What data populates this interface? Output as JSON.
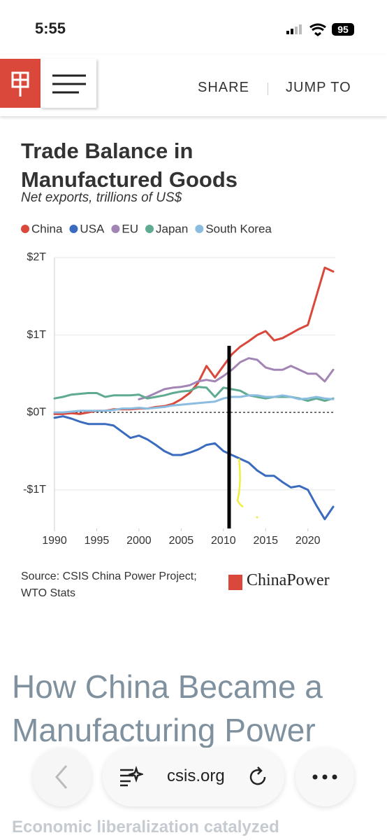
{
  "status_bar": {
    "time": "5:55",
    "battery": "95"
  },
  "nav": {
    "share": "SHARE",
    "jump_to": "JUMP TO"
  },
  "chart_data": {
    "type": "line",
    "title": "Trade Balance in Manufactured Goods",
    "subtitle": "Net exports, trillions of US$",
    "x": [
      1990,
      1991,
      1992,
      1993,
      1994,
      1995,
      1996,
      1997,
      1998,
      1999,
      2000,
      2001,
      2002,
      2003,
      2004,
      2005,
      2006,
      2007,
      2008,
      2009,
      2010,
      2011,
      2012,
      2013,
      2014,
      2015,
      2016,
      2017,
      2018,
      2019,
      2020,
      2021,
      2022,
      2023
    ],
    "series": [
      {
        "name": "China",
        "color": "#d9483b",
        "values": [
          -0.02,
          -0.02,
          -0.01,
          -0.02,
          0.0,
          0.02,
          0.02,
          0.04,
          0.04,
          0.04,
          0.05,
          0.05,
          0.07,
          0.08,
          0.11,
          0.17,
          0.25,
          0.38,
          0.6,
          0.45,
          0.6,
          0.75,
          0.85,
          0.92,
          1.0,
          1.05,
          0.93,
          0.96,
          1.02,
          1.08,
          1.13,
          1.5,
          1.87,
          1.82
        ]
      },
      {
        "name": "USA",
        "color": "#3b6bbf",
        "values": [
          -0.07,
          -0.05,
          -0.08,
          -0.12,
          -0.15,
          -0.15,
          -0.15,
          -0.17,
          -0.25,
          -0.33,
          -0.3,
          -0.35,
          -0.42,
          -0.5,
          -0.55,
          -0.55,
          -0.52,
          -0.48,
          -0.42,
          -0.4,
          -0.5,
          -0.55,
          -0.6,
          -0.65,
          -0.75,
          -0.82,
          -0.82,
          -0.9,
          -0.97,
          -0.95,
          -1.0,
          -1.2,
          -1.38,
          -1.22
        ]
      },
      {
        "name": "EU",
        "color": "#a285b4",
        "values": [
          null,
          null,
          null,
          null,
          null,
          null,
          null,
          null,
          null,
          null,
          0.17,
          0.2,
          0.25,
          0.3,
          0.32,
          0.33,
          0.35,
          0.4,
          0.42,
          0.4,
          0.47,
          0.55,
          0.65,
          0.7,
          0.68,
          0.58,
          0.55,
          0.55,
          0.6,
          0.55,
          0.5,
          0.5,
          0.4,
          0.55
        ]
      },
      {
        "name": "Japan",
        "color": "#5fab90",
        "values": [
          0.18,
          0.2,
          0.23,
          0.24,
          0.25,
          0.25,
          0.2,
          0.22,
          0.22,
          0.22,
          0.23,
          0.18,
          0.2,
          0.22,
          0.25,
          0.27,
          0.28,
          0.33,
          0.32,
          0.2,
          0.32,
          0.3,
          0.28,
          0.22,
          0.2,
          0.18,
          0.2,
          0.2,
          0.2,
          0.18,
          0.15,
          0.18,
          0.15,
          0.18
        ]
      },
      {
        "name": "South Korea",
        "color": "#8bbde0",
        "values": [
          0.0,
          0.0,
          0.01,
          0.02,
          0.02,
          0.02,
          0.02,
          0.03,
          0.05,
          0.05,
          0.06,
          0.05,
          0.06,
          0.07,
          0.09,
          0.1,
          0.11,
          0.12,
          0.13,
          0.14,
          0.18,
          0.2,
          0.2,
          0.22,
          0.22,
          0.2,
          0.2,
          0.22,
          0.2,
          0.17,
          0.18,
          0.2,
          0.18,
          0.17
        ]
      }
    ],
    "xlim": [
      1990,
      2023
    ],
    "xticks": [
      1990,
      1995,
      2000,
      2005,
      2010,
      2015,
      2020
    ],
    "ylim": [
      -1.5,
      2
    ],
    "yticks": [
      {
        "value": -1,
        "label": "-$1T"
      },
      {
        "value": 0,
        "label": "$0T"
      },
      {
        "value": 1,
        "label": "$1T"
      },
      {
        "value": 2,
        "label": "$2T"
      }
    ],
    "grid": true
  },
  "source": "Source: CSIS China Power Project; WTO Stats",
  "brand": "ChinaPower",
  "article": {
    "heading": "How China Became a Manufacturing Power",
    "lead": "Economic liberalization catalyzed"
  },
  "browser": {
    "url": "csis.org"
  }
}
